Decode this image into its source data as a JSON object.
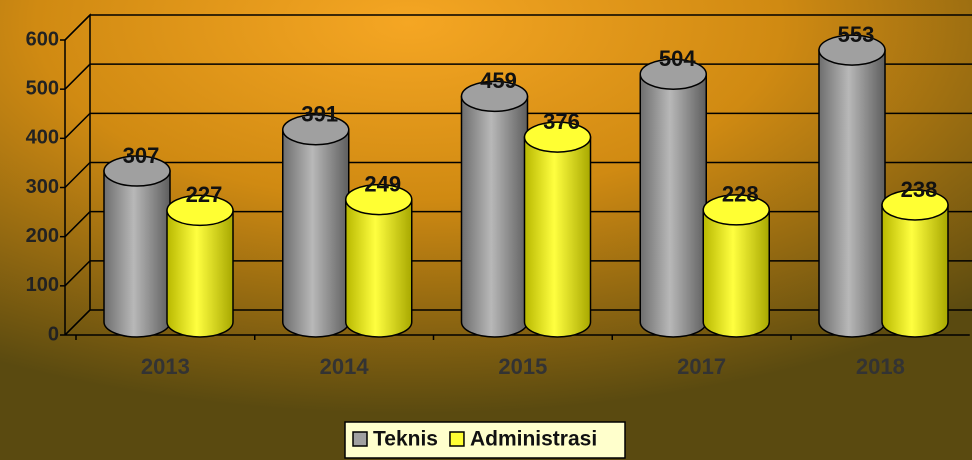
{
  "chart_data": {
    "type": "bar",
    "categories": [
      "2013",
      "2014",
      "2015",
      "2017",
      "2018"
    ],
    "series": [
      {
        "name": "Teknis",
        "color": "#a0a0a0",
        "values": [
          307,
          391,
          459,
          504,
          553
        ]
      },
      {
        "name": "Administrasi",
        "color": "#ffff33",
        "values": [
          227,
          249,
          376,
          228,
          238
        ]
      }
    ],
    "ylim": [
      0,
      600
    ],
    "yticks": [
      0,
      100,
      200,
      300,
      400,
      500,
      600
    ],
    "grid": true,
    "legend": "bottom"
  }
}
